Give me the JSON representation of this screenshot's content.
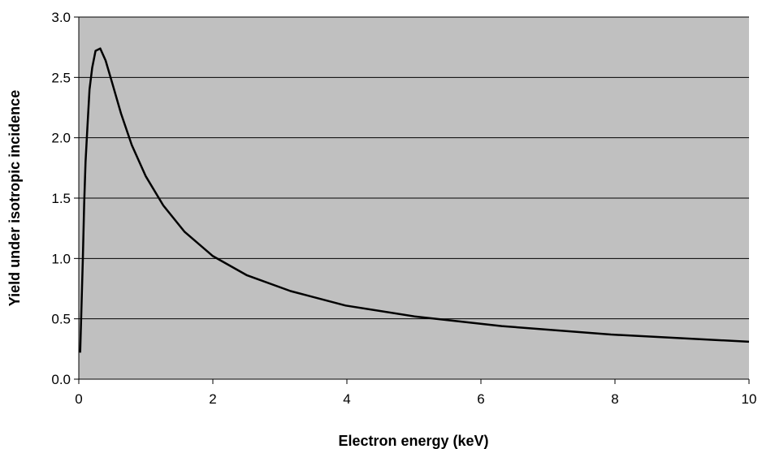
{
  "chart_data": {
    "type": "line",
    "title": "",
    "xlabel": "Electron energy (keV)",
    "ylabel": "Yield under isotropic incidence",
    "xlim": [
      0,
      10
    ],
    "ylim": [
      0,
      3.0
    ],
    "x_ticks": [
      "0",
      "2",
      "4",
      "6",
      "8",
      "10"
    ],
    "y_ticks": [
      "0.0",
      "0.5",
      "1.0",
      "1.5",
      "2.0",
      "2.5",
      "3.0"
    ],
    "grid": "horizontal",
    "legend": "none",
    "colors": {
      "plot_background": "#c0c0c0",
      "line": "#000000",
      "grid": "#000000"
    },
    "series": [
      {
        "x": [
          0.02,
          0.04,
          0.06,
          0.08,
          0.1,
          0.13,
          0.16,
          0.2,
          0.25,
          0.32,
          0.4,
          0.5,
          0.63,
          0.79,
          1.0,
          1.26,
          1.58,
          2.0,
          2.51,
          3.16,
          3.98,
          5.01,
          6.31,
          7.94,
          10.0
        ],
        "y": [
          0.22,
          0.6,
          1.0,
          1.45,
          1.8,
          2.1,
          2.4,
          2.58,
          2.72,
          2.74,
          2.64,
          2.45,
          2.2,
          1.94,
          1.68,
          1.44,
          1.22,
          1.02,
          0.86,
          0.73,
          0.61,
          0.52,
          0.44,
          0.37,
          0.31
        ]
      }
    ]
  }
}
